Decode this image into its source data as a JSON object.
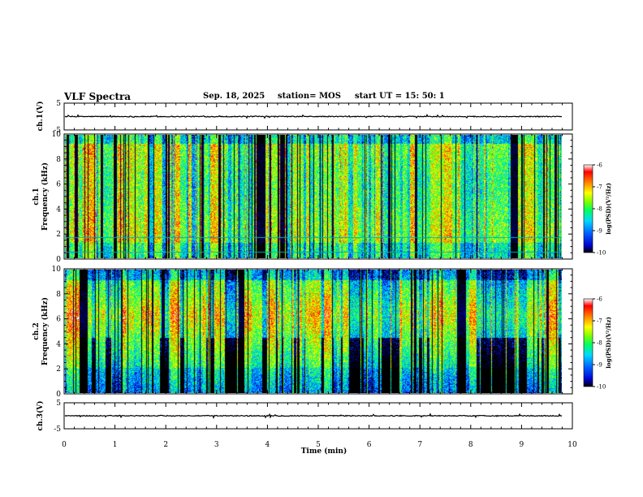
{
  "header": {
    "title": "VLF Spectra",
    "date": "Sep. 18, 2025",
    "station": "station= MOS",
    "start": "start  UT =   15: 50: 1"
  },
  "colors": {
    "colormap": [
      "#000000",
      "#0000cc",
      "#0060ff",
      "#00d8ff",
      "#00ff60",
      "#80ff00",
      "#ffff00",
      "#ff8000",
      "#ff0000",
      "#ffffff"
    ],
    "trace": "#000000",
    "line": "#00b0b0"
  },
  "chart_data": [
    {
      "type": "line",
      "name": "ch.1 waveform",
      "ylabel": "ch.1(V)",
      "ylim": [
        -5,
        5
      ],
      "yticks": [
        "5",
        "-5"
      ],
      "xlim": [
        0,
        9.8
      ],
      "baseline": 0
    },
    {
      "type": "heatmap",
      "name": "ch.1 spectrogram",
      "ylabel": "ch.1\nFrequency (kHz)",
      "ylim": [
        0,
        10
      ],
      "yticks": [
        "0",
        "2",
        "4",
        "6",
        "8",
        "10"
      ],
      "xlim": [
        0,
        9.8
      ],
      "horizontal_lines_khz": [
        0.5,
        1.7
      ],
      "colorbar": {
        "label": "log(PSD)(V²/Hz)",
        "range": [
          -10,
          -6
        ],
        "ticks": [
          "-6",
          "-7",
          "-8",
          "-9",
          "-10"
        ]
      }
    },
    {
      "type": "heatmap",
      "name": "ch.2 spectrogram",
      "ylabel": "ch.2\nFrequency (kHz)",
      "ylim": [
        0,
        10
      ],
      "yticks": [
        "0",
        "2",
        "4",
        "6",
        "8",
        "10"
      ],
      "xlim": [
        0,
        9.8
      ],
      "colorbar": {
        "label": "log(PSD)(V²/Hz)",
        "range": [
          -10,
          -6
        ],
        "ticks": [
          "-6",
          "-7",
          "-8",
          "-9",
          "-10"
        ]
      }
    },
    {
      "type": "line",
      "name": "ch.3 waveform",
      "ylabel": "ch.3(V)",
      "ylim": [
        -5,
        5
      ],
      "yticks": [
        "5",
        "-5"
      ],
      "xlim": [
        0,
        9.8
      ],
      "baseline": 0
    }
  ],
  "xaxis": {
    "label": "Time  (min)",
    "range": [
      0,
      10
    ],
    "ticks": [
      "0",
      "1",
      "2",
      "3",
      "4",
      "5",
      "6",
      "7",
      "8",
      "9",
      "10"
    ]
  }
}
